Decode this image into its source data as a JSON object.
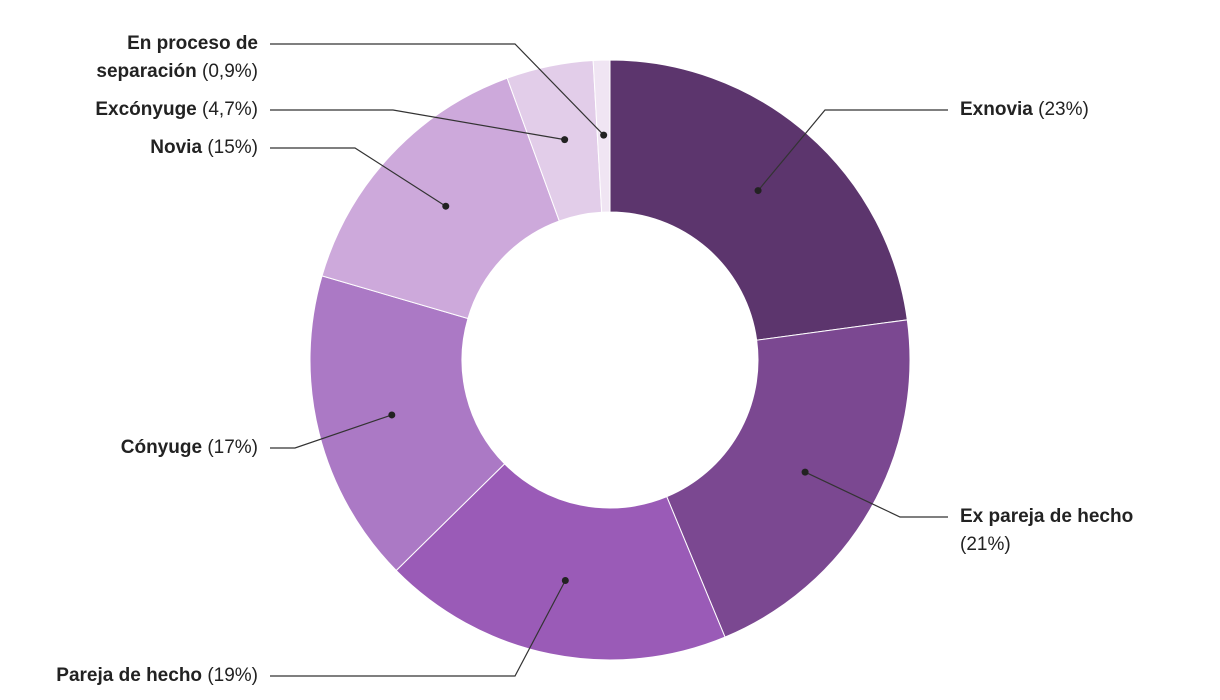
{
  "chart_data": {
    "type": "donut",
    "categories": [
      "Exnovia",
      "Ex pareja de hecho",
      "Pareja de hecho",
      "Cónyuge",
      "Novia",
      "Excónyuge",
      "En proceso de separación"
    ],
    "values": [
      23,
      21,
      19,
      17,
      15,
      4.7,
      0.9
    ],
    "value_labels": [
      "(23%)",
      "(21%)",
      "(19%)",
      "(17%)",
      "(15%)",
      "(4,7%)",
      "(0,9%)"
    ],
    "colors": [
      "#5c356d",
      "#7b4891",
      "#9a5bb7",
      "#ab79c5",
      "#cda9db",
      "#e2cde9",
      "#f0e5f3"
    ]
  }
}
